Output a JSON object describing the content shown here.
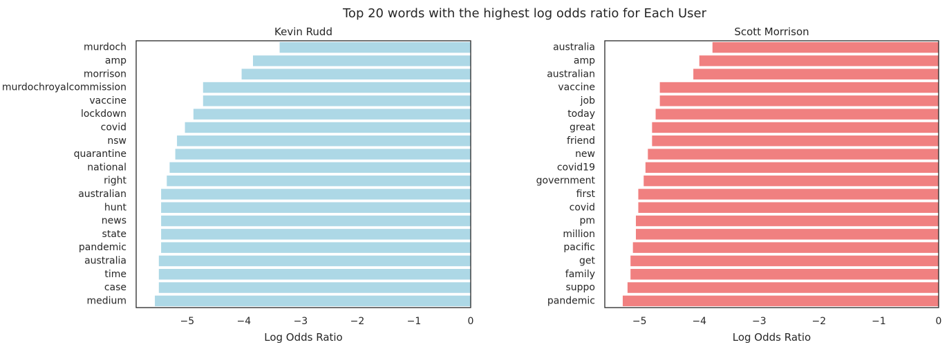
{
  "figure": {
    "suptitle": "Top 20 words with the highest log odds ratio for Each User"
  },
  "chart_data": [
    {
      "type": "bar",
      "orientation": "horizontal",
      "title": "Kevin Rudd",
      "xlabel": "Log Odds Ratio",
      "ylabel": "",
      "xlim": [
        -5.9,
        0
      ],
      "xticks": [
        "−5",
        "−4",
        "−3",
        "−2",
        "−1",
        "0"
      ],
      "xtick_values": [
        -5,
        -4,
        -3,
        -2,
        -1,
        0
      ],
      "grid": false,
      "color": "#add8e6",
      "categories": [
        "murdoch",
        "amp",
        "morrison",
        "murdochroyalcommission",
        "vaccine",
        "lockdown",
        "covid",
        "nsw",
        "quarantine",
        "national",
        "right",
        "australian",
        "hunt",
        "news",
        "state",
        "pandemic",
        "australia",
        "time",
        "case",
        "medium"
      ],
      "values": [
        -3.37,
        -3.84,
        -4.04,
        -4.72,
        -4.72,
        -4.89,
        -5.04,
        -5.18,
        -5.21,
        -5.31,
        -5.36,
        -5.46,
        -5.46,
        -5.46,
        -5.46,
        -5.46,
        -5.5,
        -5.5,
        -5.5,
        -5.57
      ]
    },
    {
      "type": "bar",
      "orientation": "horizontal",
      "title": "Scott Morrison",
      "xlabel": "Log Odds Ratio",
      "ylabel": "",
      "xlim": [
        -5.58,
        0
      ],
      "xticks": [
        "−5",
        "−4",
        "−3",
        "−2",
        "−1",
        "0"
      ],
      "xtick_values": [
        -5,
        -4,
        -3,
        -2,
        -1,
        0
      ],
      "grid": false,
      "color": "#f08080",
      "categories": [
        "australia",
        "amp",
        "australian",
        "vaccine",
        "job",
        "today",
        "great",
        "friend",
        "new",
        "covid19",
        "government",
        "first",
        "covid",
        "pm",
        "million",
        "pacific",
        "get",
        "family",
        "suppo",
        "pandemic"
      ],
      "values": [
        -3.78,
        -4.0,
        -4.1,
        -4.66,
        -4.66,
        -4.73,
        -4.79,
        -4.79,
        -4.86,
        -4.9,
        -4.93,
        -5.02,
        -5.02,
        -5.06,
        -5.06,
        -5.11,
        -5.15,
        -5.15,
        -5.2,
        -5.28
      ]
    }
  ]
}
